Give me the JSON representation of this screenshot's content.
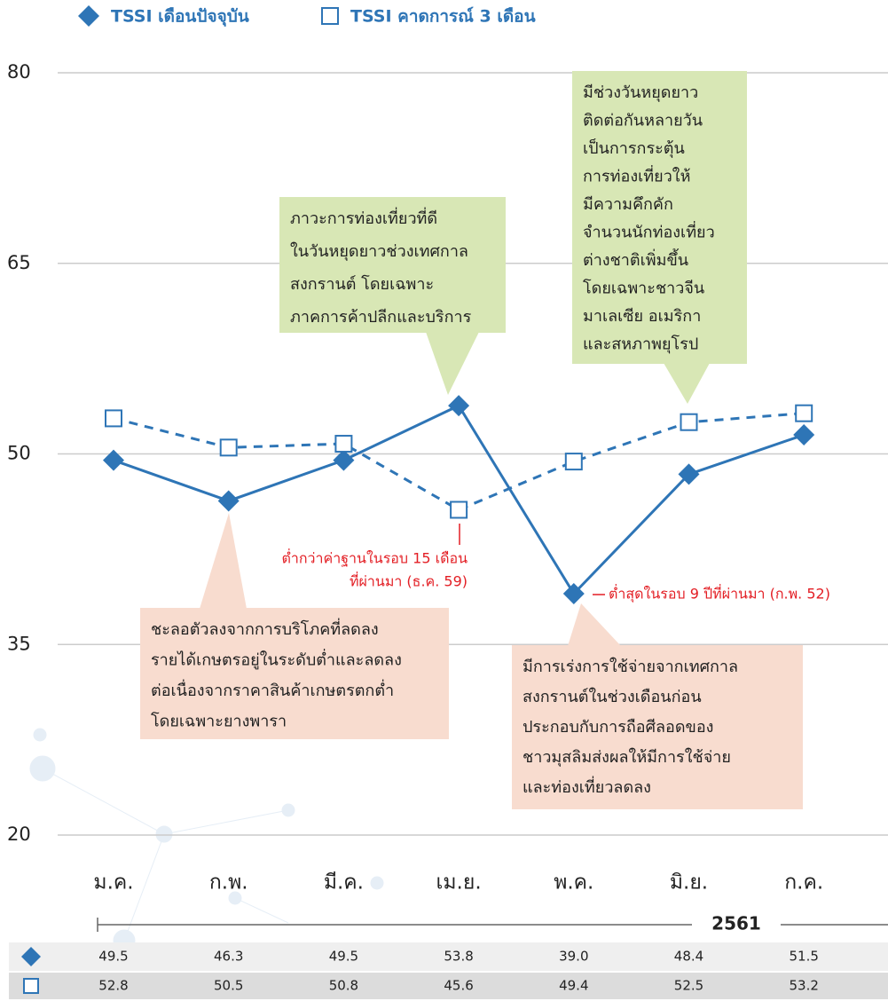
{
  "chart_data": {
    "type": "line",
    "categories": [
      "ม.ค.",
      "ก.พ.",
      "มี.ค.",
      "เม.ย.",
      "พ.ค.",
      "มิ.ย.",
      "ก.ค."
    ],
    "period_label": "2561",
    "ylim": [
      20,
      80
    ],
    "yticks": [
      20,
      35,
      50,
      65,
      80
    ],
    "grid": true,
    "series": [
      {
        "name": "TSSI เดือนปัจจุบัน",
        "color": "#2e75b6",
        "line_style": "solid",
        "marker": "diamond",
        "values": [
          49.5,
          46.3,
          49.5,
          53.8,
          39.0,
          48.4,
          51.5
        ],
        "value_labels": [
          "49.5",
          "46.3",
          "49.5",
          "53.8",
          "39.0",
          "48.4",
          "51.5"
        ]
      },
      {
        "name": "TSSI คาดการณ์ 3 เดือน",
        "color": "#2e75b6",
        "line_style": "dashed",
        "marker": "square",
        "values": [
          52.8,
          50.5,
          50.8,
          45.6,
          49.4,
          52.5,
          53.2
        ]
      }
    ],
    "annotations": [
      {
        "lines": [
          "ภาวะการท่องเที่ยวที่ดี",
          "ในวันหยุดยาวช่วงเทศกาล",
          "สงกรานต์ โดยเฉพาะ",
          "ภาคการค้าปลีกและบริการ"
        ]
      },
      {
        "lines": [
          "มีช่วงวันหยุดยาว",
          "ติดต่อกันหลายวัน",
          "เป็นการกระตุ้น",
          "การท่องเที่ยวให้",
          "มีความคึกคัก",
          "จำนวนนักท่องเที่ยว",
          "ต่างชาติเพิ่มขึ้น",
          "โดยเฉพาะชาวจีน",
          "มาเลเซีย อเมริกา",
          "และสหภาพยุโรป"
        ]
      },
      {
        "lines": [
          "ชะลอตัวลงจากการบริโภคที่ลดลง",
          "รายได้เกษตรอยู่ในระดับต่ำและลดลง",
          "ต่อเนื่องจากราคาสินค้าเกษตรตกต่ำ",
          "โดยเฉพาะยางพารา"
        ]
      },
      {
        "lines": [
          "มีการเร่งการใช้จ่ายจากเทศกาล",
          "สงกรานต์ในช่วงเดือนก่อน",
          "ประกอบกับการถือศีลอดของ",
          "ชาวมุสลิมส่งผลให้มีการใช้จ่าย",
          "และท่องเที่ยวลดลง"
        ]
      },
      {
        "lines": [
          "ต่ำกว่าค่าฐานในรอบ 15 เดือน",
          "ที่ผ่านมา (ธ.ค. 59)"
        ]
      },
      {
        "lines": [
          "ต่ำสุดในรอบ 9 ปีที่ผ่านมา (ก.พ. 52)"
        ]
      }
    ]
  }
}
